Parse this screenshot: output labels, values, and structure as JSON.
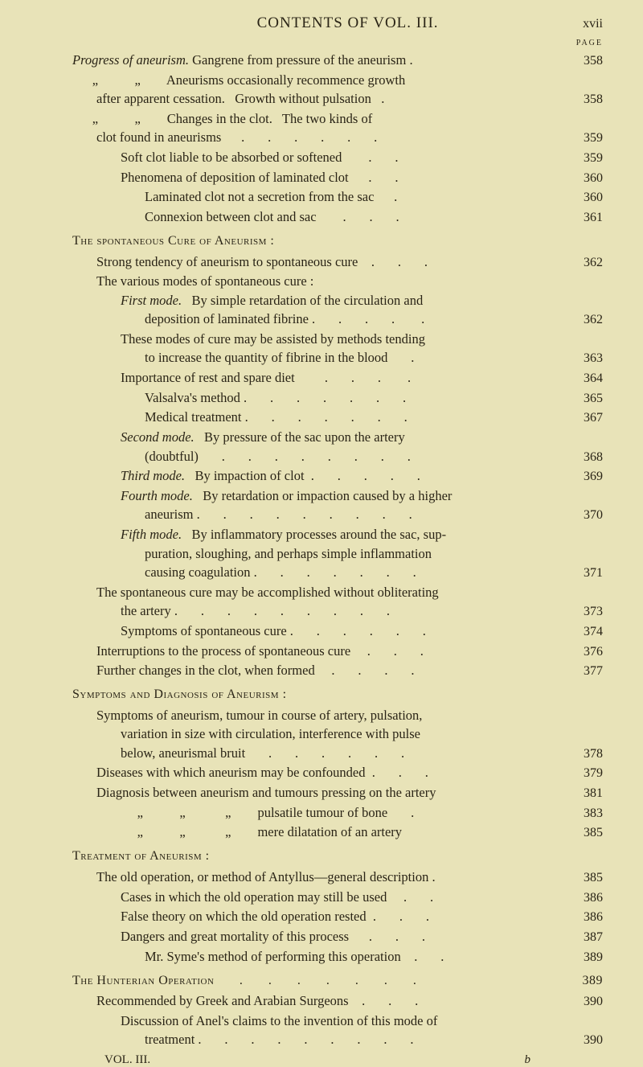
{
  "header": {
    "title": "CONTENTS OF VOL. III.",
    "page_roman": "xvii",
    "page_label": "PAGE"
  },
  "entries": [
    {
      "indent": 0,
      "text_pre": "",
      "italic": "Progress of aneurism.",
      "text_post": " Gangrene from pressure of the aneurism .",
      "page": "358"
    },
    {
      "indent": 0,
      "text_pre": "      „           „        Aneurisms occasionally recommence growth",
      "page": ""
    },
    {
      "indent": 1,
      "text_pre": "after apparent cessation.   Growth without pulsation   .",
      "page": "358"
    },
    {
      "indent": 0,
      "text_pre": "      „           „        Changes in the clot.   The two kinds of",
      "page": ""
    },
    {
      "indent": 1,
      "text_pre": "clot found in aneurisms      .       .       .       .       .       .",
      "page": "359"
    },
    {
      "indent": 2,
      "text_pre": "Soft clot liable to be absorbed or softened        .       .",
      "page": "359"
    },
    {
      "indent": 2,
      "text_pre": "Phenomena of deposition of laminated clot      .       .",
      "page": "360"
    },
    {
      "indent": 3,
      "text_pre": "Laminated clot not a secretion from the sac      .",
      "page": "360"
    },
    {
      "indent": 3,
      "text_pre": "Connexion between clot and sac        .       .       .",
      "page": "361"
    },
    {
      "heading": true,
      "text_pre": "The spontaneous Cure of Aneurism :"
    },
    {
      "indent": 1,
      "text_pre": "Strong tendency of aneurism to spontaneous cure    .       .       .",
      "page": "362"
    },
    {
      "indent": 1,
      "text_pre": "The various modes of spontaneous cure :",
      "page": ""
    },
    {
      "indent": 2,
      "italic": "First mode.",
      "text_post": "   By simple retardation of the circulation and",
      "page": ""
    },
    {
      "indent": 3,
      "text_pre": "deposition of laminated fibrine .       .       .       .        .",
      "page": "362"
    },
    {
      "indent": 2,
      "text_pre": "These modes of cure may be assisted by methods tending",
      "page": ""
    },
    {
      "indent": 3,
      "text_pre": "to increase the quantity of fibrine in the blood       .",
      "page": "363"
    },
    {
      "indent": 2,
      "text_pre": "Importance of rest and spare diet         .       .       .        .",
      "page": "364"
    },
    {
      "indent": 3,
      "text_pre": "Valsalva's method .       .       .       .       .       .       .",
      "page": "365"
    },
    {
      "indent": 3,
      "text_pre": "Medical treatment .       .       .       .       .       .       .",
      "page": "367"
    },
    {
      "indent": 2,
      "italic": "Second mode.",
      "text_post": "   By pressure of the sac upon the artery",
      "page": ""
    },
    {
      "indent": 3,
      "text_pre": "(doubtful)       .       .       .       .       .       .       .       .",
      "page": "368"
    },
    {
      "indent": 2,
      "italic": "Third mode.",
      "text_post": "   By impaction of clot  .       .       .       .       .",
      "page": "369"
    },
    {
      "indent": 2,
      "italic": "Fourth mode.",
      "text_post": "   By retardation or impaction caused by a higher",
      "page": ""
    },
    {
      "indent": 3,
      "text_pre": "aneurism .       .       .       .       .       .       .       .       .",
      "page": "370"
    },
    {
      "indent": 2,
      "italic": "Fifth mode.",
      "text_post": "   By inflammatory processes around the sac, sup-",
      "page": ""
    },
    {
      "indent": 3,
      "text_pre": "puration, sloughing, and perhaps simple inflammation",
      "page": ""
    },
    {
      "indent": 3,
      "text_pre": "causing coagulation .       .       .       .       .       .       .",
      "page": "371"
    },
    {
      "indent": 1,
      "text_pre": "The spontaneous cure may be accomplished without obliterating",
      "page": ""
    },
    {
      "indent": 2,
      "text_pre": "the artery .       .       .       .       .       .       .       .       .",
      "page": "373"
    },
    {
      "indent": 2,
      "text_pre": "Symptoms of spontaneous cure .       .       .       .       .       .",
      "page": "374"
    },
    {
      "indent": 1,
      "text_pre": "Interruptions to the process of spontaneous cure     .       .       .",
      "page": "376"
    },
    {
      "indent": 1,
      "text_pre": "Further changes in the clot, when formed     .       .       .       .",
      "page": "377"
    },
    {
      "heading": true,
      "text_pre": "Symptoms and Diagnosis of Aneurism :"
    },
    {
      "indent": 1,
      "text_pre": "Symptoms of aneurism, tumour in course of artery, pulsation,",
      "page": ""
    },
    {
      "indent": 2,
      "text_pre": "variation in size with circulation, interference with pulse",
      "page": ""
    },
    {
      "indent": 2,
      "text_pre": "below, aneurismal bruit       .       .       .       .       .       .",
      "page": "378"
    },
    {
      "indent": 1,
      "text_pre": "Diseases with which aneurism may be confounded  .       .       .",
      "page": "379"
    },
    {
      "indent": 1,
      "text_pre": "Diagnosis between aneurism and tumours pressing on the artery",
      "page": "381"
    },
    {
      "indent": 2,
      "text_pre": "     „           „            „        pulsatile tumour of bone       .",
      "page": "383"
    },
    {
      "indent": 2,
      "text_pre": "     „           „            „        mere dilatation of an artery",
      "page": "385"
    },
    {
      "heading": true,
      "text_pre": "Treatment of Aneurism :"
    },
    {
      "indent": 1,
      "text_pre": "The old operation, or method of Antyllus—general description .",
      "page": "385"
    },
    {
      "indent": 2,
      "text_pre": "Cases in which the old operation may still be used     .       .",
      "page": "386"
    },
    {
      "indent": 2,
      "text_pre": "False theory on which the old operation rested  .       .       .",
      "page": "386"
    },
    {
      "indent": 2,
      "text_pre": "Dangers and great mortality of this process      .       .       .",
      "page": "387"
    },
    {
      "indent": 3,
      "text_pre": "Mr. Syme's method of performing this operation    .       .",
      "page": "389"
    },
    {
      "heading": true,
      "text_pre": "The Hunterian Operation       .       .       .       .       .       .       .",
      "page": "389"
    },
    {
      "indent": 1,
      "text_pre": "Recommended by Greek and Arabian Surgeons    .       .       .",
      "page": "390"
    },
    {
      "indent": 2,
      "text_pre": "Discussion of Anel's claims to the invention of this mode of",
      "page": ""
    },
    {
      "indent": 3,
      "text_pre": "treatment .       .       .       .       .       .       .       .       .",
      "page": "390"
    }
  ],
  "footer": {
    "vol": "VOL. III.",
    "sig": "b"
  },
  "colors": {
    "background": "#e8e3b8",
    "text": "#2a2416"
  }
}
